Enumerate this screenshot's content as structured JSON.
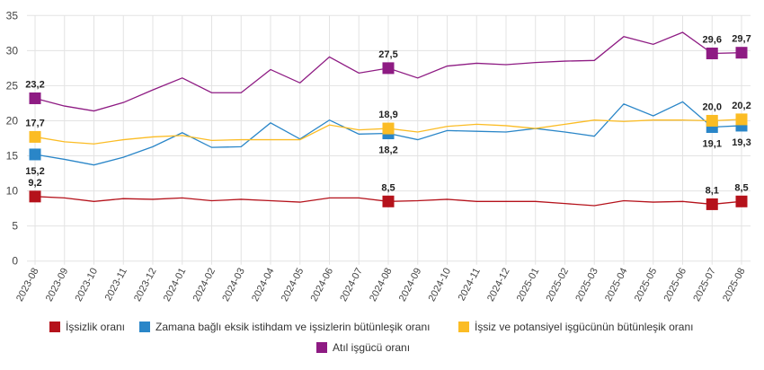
{
  "chart_data": {
    "type": "line",
    "title": "",
    "xlabel": "",
    "ylabel": "",
    "ylim": [
      0,
      35
    ],
    "yticks": [
      0,
      5,
      10,
      15,
      20,
      25,
      30,
      35
    ],
    "grid": true,
    "legend_position": "bottom",
    "categories": [
      "2023-08",
      "2023-09",
      "2023-10",
      "2023-11",
      "2023-12",
      "2024-01",
      "2024-02",
      "2024-03",
      "2024-04",
      "2024-05",
      "2024-06",
      "2024-07",
      "2024-08",
      "2024-09",
      "2024-10",
      "2024-11",
      "2024-12",
      "2025-01",
      "2025-02",
      "2025-03",
      "2025-04",
      "2025-05",
      "2025-06",
      "2025-07",
      "2025-08"
    ],
    "series": [
      {
        "name": "İşsizlik oranı",
        "color": "#b5121b",
        "values": [
          9.2,
          9.0,
          8.5,
          8.9,
          8.8,
          9.0,
          8.6,
          8.8,
          8.6,
          8.4,
          9.0,
          9.0,
          8.5,
          8.6,
          8.8,
          8.5,
          8.5,
          8.5,
          8.2,
          7.9,
          8.6,
          8.4,
          8.5,
          8.1,
          8.5
        ],
        "labels": {
          "0": "9,2",
          "12": "8,5",
          "23": "8,1",
          "24": "8,5"
        },
        "label_pos": "above"
      },
      {
        "name": "Zamana bağlı eksik istihdam ve işsizlerin bütünleşik oranı",
        "color": "#2a86c8",
        "values": [
          15.2,
          14.5,
          13.7,
          14.8,
          16.3,
          18.3,
          16.2,
          16.3,
          19.7,
          17.4,
          20.1,
          18.1,
          18.2,
          17.3,
          18.6,
          18.5,
          18.4,
          18.9,
          18.4,
          17.8,
          22.4,
          20.7,
          22.7,
          19.1,
          19.3
        ],
        "labels": {
          "0": "15,2",
          "12": "18,2",
          "23": "19,1",
          "24": "19,3"
        },
        "label_pos": "below"
      },
      {
        "name": "İşsiz ve potansiyel işgücünün bütünleşik oranı",
        "color": "#fbbc24",
        "values": [
          17.7,
          17.0,
          16.7,
          17.3,
          17.7,
          17.9,
          17.2,
          17.3,
          17.3,
          17.3,
          19.4,
          18.7,
          18.9,
          18.4,
          19.2,
          19.5,
          19.3,
          18.9,
          19.5,
          20.1,
          19.9,
          20.1,
          20.1,
          20.0,
          20.2
        ],
        "labels": {
          "0": "17,7",
          "12": "18,9",
          "23": "20,0",
          "24": "20,2"
        },
        "label_pos": "above"
      },
      {
        "name": "Atıl işgücü oranı",
        "color": "#8e1b83",
        "values": [
          23.2,
          22.1,
          21.4,
          22.6,
          24.4,
          26.1,
          24.0,
          24.0,
          27.3,
          25.4,
          29.1,
          26.8,
          27.5,
          26.1,
          27.8,
          28.2,
          28.0,
          28.3,
          28.5,
          28.6,
          32.0,
          30.9,
          32.6,
          29.6,
          29.7
        ],
        "labels": {
          "0": "23,2",
          "12": "27,5",
          "23": "29,6",
          "24": "29,7"
        },
        "label_pos": "above"
      }
    ]
  }
}
